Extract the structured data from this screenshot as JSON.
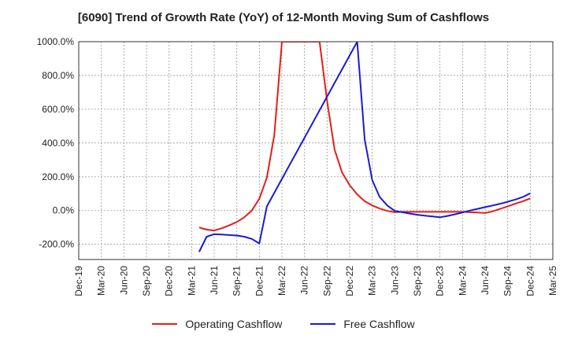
{
  "chart_data": {
    "type": "line",
    "title": "[6090]  Trend of Growth Rate (YoY) of 12-Month Moving Sum of Cashflows",
    "xlabel": "",
    "ylabel": "",
    "x_ticks": [
      "Dec-19",
      "Mar-20",
      "Jun-20",
      "Sep-20",
      "Dec-20",
      "Mar-21",
      "Jun-21",
      "Sep-21",
      "Dec-21",
      "Mar-22",
      "Jun-22",
      "Sep-22",
      "Dec-22",
      "Mar-23",
      "Jun-23",
      "Sep-23",
      "Dec-23",
      "Mar-24",
      "Jun-24",
      "Sep-24",
      "Dec-24",
      "Mar-25"
    ],
    "y_ticks": [
      "-200.0%",
      "0.0%",
      "200.0%",
      "400.0%",
      "600.0%",
      "800.0%",
      "1000.0%"
    ],
    "ylim": [
      -290,
      1000
    ],
    "grid": true,
    "legend_position": "bottom",
    "series": [
      {
        "name": "Operating Cashflow",
        "color": "#e0201b",
        "points": [
          [
            "Apr-21",
            -100
          ],
          [
            "May-21",
            -113
          ],
          [
            "Jun-21",
            -118
          ],
          [
            "Jul-21",
            -105
          ],
          [
            "Aug-21",
            -88
          ],
          [
            "Sep-21",
            -68
          ],
          [
            "Oct-21",
            -40
          ],
          [
            "Nov-21",
            0
          ],
          [
            "Dec-21",
            70
          ],
          [
            "Jan-22",
            195
          ],
          [
            "Feb-22",
            450
          ],
          [
            "Mar-22",
            1000
          ],
          [
            "Aug-22",
            1000
          ],
          [
            "Sep-22",
            650
          ],
          [
            "Oct-22",
            360
          ],
          [
            "Nov-22",
            225
          ],
          [
            "Dec-22",
            150
          ],
          [
            "Jan-23",
            95
          ],
          [
            "Feb-23",
            55
          ],
          [
            "Mar-23",
            30
          ],
          [
            "Apr-23",
            12
          ],
          [
            "May-23",
            -2
          ],
          [
            "Jun-23",
            -10
          ],
          [
            "Jul-23",
            -8
          ],
          [
            "Aug-23",
            -8
          ],
          [
            "Sep-23",
            -8
          ],
          [
            "Oct-23",
            -8
          ],
          [
            "Nov-23",
            -8
          ],
          [
            "Dec-23",
            -8
          ],
          [
            "Jan-24",
            -8
          ],
          [
            "Feb-24",
            -8
          ],
          [
            "Mar-24",
            -8
          ],
          [
            "Apr-24",
            -10
          ],
          [
            "May-24",
            -12
          ],
          [
            "Jun-24",
            -15
          ],
          [
            "Jul-24",
            -5
          ],
          [
            "Aug-24",
            10
          ],
          [
            "Sep-24",
            25
          ],
          [
            "Oct-24",
            40
          ],
          [
            "Nov-24",
            55
          ],
          [
            "Dec-24",
            72
          ]
        ]
      },
      {
        "name": "Free Cashflow",
        "color": "#1a1ad6",
        "points": [
          [
            "Apr-21",
            -245
          ],
          [
            "May-21",
            -155
          ],
          [
            "Jun-21",
            -140
          ],
          [
            "Jul-21",
            -142
          ],
          [
            "Aug-21",
            -145
          ],
          [
            "Sep-21",
            -148
          ],
          [
            "Oct-21",
            -155
          ],
          [
            "Nov-21",
            -168
          ],
          [
            "Dec-21",
            -195
          ],
          [
            "Jan-22",
            25
          ],
          [
            "Jan-23",
            1000
          ],
          [
            "Feb-23",
            420
          ],
          [
            "Mar-23",
            180
          ],
          [
            "Apr-23",
            80
          ],
          [
            "May-23",
            30
          ],
          [
            "Jun-23",
            -2
          ],
          [
            "Jul-23",
            -10
          ],
          [
            "Aug-23",
            -18
          ],
          [
            "Sep-23",
            -25
          ],
          [
            "Oct-23",
            -30
          ],
          [
            "Nov-23",
            -35
          ],
          [
            "Dec-23",
            -40
          ],
          [
            "Jan-24",
            -32
          ],
          [
            "Feb-24",
            -22
          ],
          [
            "Mar-24",
            -12
          ],
          [
            "Apr-24",
            0
          ],
          [
            "May-24",
            10
          ],
          [
            "Jun-24",
            20
          ],
          [
            "Jul-24",
            30
          ],
          [
            "Aug-24",
            40
          ],
          [
            "Sep-24",
            52
          ],
          [
            "Oct-24",
            65
          ],
          [
            "Nov-24",
            80
          ],
          [
            "Dec-24",
            102
          ]
        ]
      }
    ]
  }
}
